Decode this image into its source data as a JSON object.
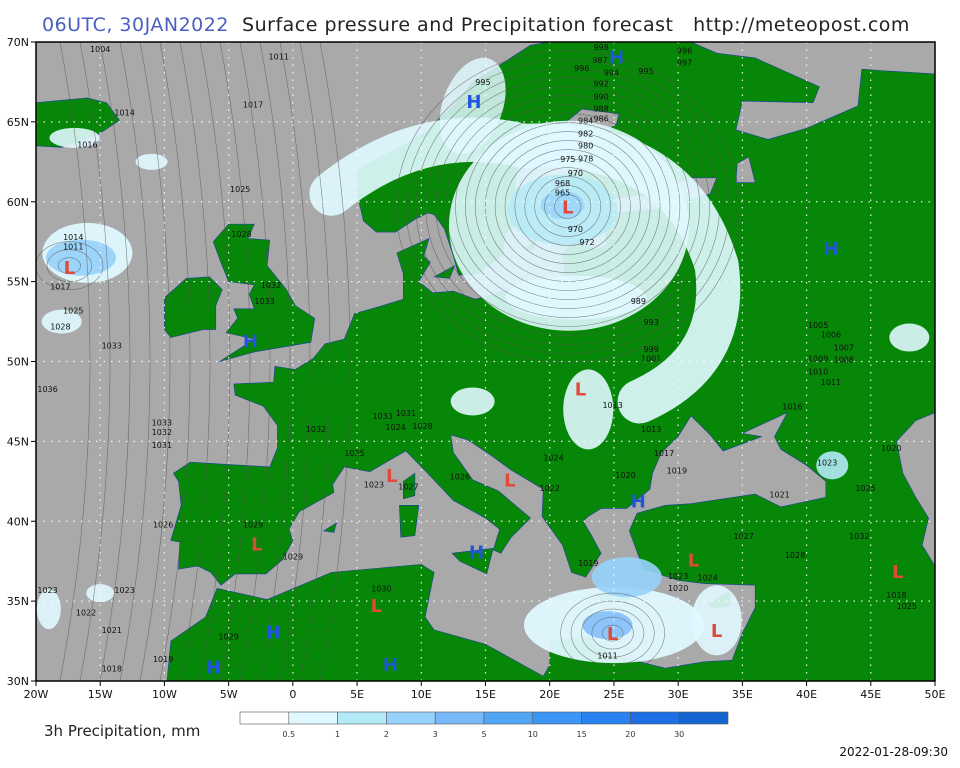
{
  "header": {
    "time": "06UTC, 30JAN2022",
    "title": "Surface pressure and Precipitation forecast",
    "url": "http://meteopost.com"
  },
  "map": {
    "lon_range": [
      -20,
      50
    ],
    "lat_range": [
      30,
      70
    ],
    "grid_step_deg": 5,
    "grid": "dotted",
    "colors": {
      "land": "#078707",
      "sea": "#a9a9a9",
      "high": "#2255dd",
      "low": "#e04a3a"
    },
    "lon_labels": [
      "20W",
      "15W",
      "10W",
      "5W",
      "0",
      "5E",
      "10E",
      "15E",
      "20E",
      "25E",
      "30E",
      "35E",
      "40E",
      "45E",
      "50E"
    ],
    "lat_labels": [
      "70N",
      "65N",
      "60N",
      "55N",
      "50N",
      "45N",
      "40N",
      "35N",
      "30N"
    ],
    "pressure_centers": [
      {
        "type": "H",
        "lon": 14.1,
        "lat": 66.3
      },
      {
        "type": "H",
        "lon": 25.2,
        "lat": 69.1
      },
      {
        "type": "L",
        "lon": -17.4,
        "lat": 55.9
      },
      {
        "type": "L",
        "lon": 21.4,
        "lat": 59.7
      },
      {
        "type": "H",
        "lon": 41.9,
        "lat": 57.1
      },
      {
        "type": "H",
        "lon": -3.3,
        "lat": 51.3
      },
      {
        "type": "L",
        "lon": 22.4,
        "lat": 48.3
      },
      {
        "type": "L",
        "lon": 7.7,
        "lat": 42.9
      },
      {
        "type": "L",
        "lon": 16.9,
        "lat": 42.6
      },
      {
        "type": "H",
        "lon": 26.9,
        "lat": 41.3
      },
      {
        "type": "L",
        "lon": -2.8,
        "lat": 38.6
      },
      {
        "type": "H",
        "lon": 14.3,
        "lat": 38.1
      },
      {
        "type": "L",
        "lon": 31.2,
        "lat": 37.6
      },
      {
        "type": "L",
        "lon": 47.1,
        "lat": 36.9
      },
      {
        "type": "L",
        "lon": 6.5,
        "lat": 34.75
      },
      {
        "type": "L",
        "lon": 24.9,
        "lat": 33.0
      },
      {
        "type": "L",
        "lon": 33.0,
        "lat": 33.2
      },
      {
        "type": "H",
        "lon": -1.5,
        "lat": 33.1
      },
      {
        "type": "H",
        "lon": -6.2,
        "lat": 30.9
      },
      {
        "type": "H",
        "lon": 7.6,
        "lat": 30.75
      }
    ],
    "isobar_labels": [
      {
        "v": "1004",
        "lon": -15,
        "lat": 69.7
      },
      {
        "v": "1011",
        "lon": -1.1,
        "lat": 68.9
      },
      {
        "v": "1017",
        "lon": -3.1,
        "lat": 65.9
      },
      {
        "v": "1014",
        "lon": -13.1,
        "lat": 65.4
      },
      {
        "v": "1016",
        "lon": -16,
        "lat": 63.4
      },
      {
        "v": "1025",
        "lon": -4.1,
        "lat": 60.6
      },
      {
        "v": "1014",
        "lon": -17.1,
        "lat": 57.6
      },
      {
        "v": "1011",
        "lon": -17.1,
        "lat": 57.0
      },
      {
        "v": "1017",
        "lon": -18.1,
        "lat": 54.5
      },
      {
        "v": "1025",
        "lon": -17.1,
        "lat": 53.0
      },
      {
        "v": "1028",
        "lon": -18.1,
        "lat": 52.0
      },
      {
        "v": "1033",
        "lon": -14.1,
        "lat": 50.8
      },
      {
        "v": "1036",
        "lon": -19.1,
        "lat": 48.1
      },
      {
        "v": "1033",
        "lon": -10.2,
        "lat": 46.0
      },
      {
        "v": "1032",
        "lon": -10.2,
        "lat": 45.4
      },
      {
        "v": "1031",
        "lon": -10.2,
        "lat": 44.9
      },
      {
        "v": "1026",
        "lon": -10.1,
        "lat": 39.6
      },
      {
        "v": "1029",
        "lon": -3.1,
        "lat": 39.6
      },
      {
        "v": "1029",
        "lon": 0,
        "lat": 37.6
      },
      {
        "v": "1023",
        "lon": -19.1,
        "lat": 35.5
      },
      {
        "v": "1023",
        "lon": -13.1,
        "lat": 35.5
      },
      {
        "v": "1022",
        "lon": -16.1,
        "lat": 34.1
      },
      {
        "v": "1021",
        "lon": -14.1,
        "lat": 33.0
      },
      {
        "v": "1018",
        "lon": -14.1,
        "lat": 30.6
      },
      {
        "v": "1019",
        "lon": -10.1,
        "lat": 31.2
      },
      {
        "v": "1029",
        "lon": -5,
        "lat": 32.6
      },
      {
        "v": "1030",
        "lon": 6.9,
        "lat": 35.6
      },
      {
        "v": "1032",
        "lon": 1.8,
        "lat": 45.6
      },
      {
        "v": "1025",
        "lon": 4.8,
        "lat": 44.1
      },
      {
        "v": "1023",
        "lon": 6.9,
        "lat": 42.1
      },
      {
        "v": "1026",
        "lon": 13,
        "lat": 42.6
      },
      {
        "v": "1033",
        "lon": -2.2,
        "lat": 53.6
      },
      {
        "v": "1032",
        "lon": -1.7,
        "lat": 54.6
      },
      {
        "v": "1028",
        "lon": -4,
        "lat": 57.8
      },
      {
        "v": "995",
        "lon": 14.8,
        "lat": 67.3
      },
      {
        "v": "998",
        "lon": 24,
        "lat": 69.5
      },
      {
        "v": "996",
        "lon": 22.5,
        "lat": 68.2
      },
      {
        "v": "987",
        "lon": 24.5,
        "lat": 68.7
      },
      {
        "v": "994",
        "lon": 24.8,
        "lat": 67.9
      },
      {
        "v": "995",
        "lon": 27.5,
        "lat": 68.0
      },
      {
        "v": "992",
        "lon": 24.0,
        "lat": 67.2
      },
      {
        "v": "990",
        "lon": 24.0,
        "lat": 66.7
      },
      {
        "v": "988",
        "lon": 24.0,
        "lat": 66.2
      },
      {
        "v": "986",
        "lon": 24.0,
        "lat": 65.6
      },
      {
        "v": "984",
        "lon": 22.8,
        "lat": 64.9
      },
      {
        "v": "982",
        "lon": 22.8,
        "lat": 64.4
      },
      {
        "v": "980",
        "lon": 22.8,
        "lat": 63.9
      },
      {
        "v": "978",
        "lon": 22.8,
        "lat": 63.4
      },
      {
        "v": "975",
        "lon": 22.0,
        "lat": 62.5
      },
      {
        "v": "970",
        "lon": 22.0,
        "lat": 61.6
      },
      {
        "v": "968",
        "lon": 21.0,
        "lat": 61.0
      },
      {
        "v": "965",
        "lon": 21.0,
        "lat": 60.4
      },
      {
        "v": "970",
        "lon": 22.0,
        "lat": 58.1
      },
      {
        "v": "972",
        "lon": 22.9,
        "lat": 57.6
      },
      {
        "v": "989",
        "lon": 26.9,
        "lat": 53.6
      },
      {
        "v": "993",
        "lon": 27.9,
        "lat": 52.3
      },
      {
        "v": "999",
        "lon": 27.9,
        "lat": 50.6
      },
      {
        "v": "1001",
        "lon": 27.9,
        "lat": 50.0
      },
      {
        "v": "996",
        "lon": 30.5,
        "lat": 69.6
      },
      {
        "v": "997",
        "lon": 30.5,
        "lat": 69.1
      },
      {
        "v": "1013",
        "lon": 24.9,
        "lat": 47.1
      },
      {
        "v": "1016",
        "lon": 38.9,
        "lat": 47.0
      },
      {
        "v": "1013",
        "lon": 27.9,
        "lat": 45.6
      },
      {
        "v": "1017",
        "lon": 28.9,
        "lat": 44.1
      },
      {
        "v": "1019",
        "lon": 29.9,
        "lat": 43.0
      },
      {
        "v": "1020",
        "lon": 25.9,
        "lat": 42.7
      },
      {
        "v": "1021",
        "lon": 37.9,
        "lat": 41.5
      },
      {
        "v": "1023",
        "lon": 41.6,
        "lat": 43.5
      },
      {
        "v": "1025",
        "lon": 44.6,
        "lat": 41.9
      },
      {
        "v": "1027",
        "lon": 35.1,
        "lat": 38.9
      },
      {
        "v": "1028",
        "lon": 39.1,
        "lat": 37.7
      },
      {
        "v": "1032",
        "lon": 44.1,
        "lat": 38.9
      },
      {
        "v": "1020",
        "lon": 46.6,
        "lat": 44.4
      },
      {
        "v": "1005",
        "lon": 40.9,
        "lat": 52.1
      },
      {
        "v": "1006",
        "lon": 41.9,
        "lat": 51.5
      },
      {
        "v": "1007",
        "lon": 42.9,
        "lat": 51.0
      },
      {
        "v": "1008",
        "lon": 42.9,
        "lat": 50.5
      },
      {
        "v": "1009",
        "lon": 40.9,
        "lat": 50.0
      },
      {
        "v": "1010",
        "lon": 40.9,
        "lat": 49.5
      },
      {
        "v": "1011",
        "lon": 41.9,
        "lat": 49.1
      },
      {
        "v": "1031",
        "lon": 8.8,
        "lat": 46.6
      },
      {
        "v": "1024",
        "lon": 8.0,
        "lat": 45.7
      },
      {
        "v": "1028",
        "lon": 10.1,
        "lat": 46.1
      },
      {
        "v": "1033",
        "lon": 7.0,
        "lat": 46.1
      },
      {
        "v": "1027",
        "lon": 9.0,
        "lat": 42.0
      },
      {
        "v": "1024",
        "lon": 20.3,
        "lat": 43.8
      },
      {
        "v": "1022",
        "lon": 20.0,
        "lat": 41.9
      },
      {
        "v": "1019",
        "lon": 23.0,
        "lat": 37.2
      },
      {
        "v": "1023",
        "lon": 30.0,
        "lat": 36.7
      },
      {
        "v": "1020",
        "lon": 30.0,
        "lat": 36.2
      },
      {
        "v": "1024",
        "lon": 32.3,
        "lat": 36.6
      },
      {
        "v": "1011",
        "lon": 24.5,
        "lat": 31.4
      },
      {
        "v": "1018",
        "lon": 47,
        "lat": 35.2
      },
      {
        "v": "1025",
        "lon": 47.8,
        "lat": 34.5
      }
    ]
  },
  "legend": {
    "label": "3h Precipitation, mm",
    "thresholds": [
      "0.5",
      "1",
      "2",
      "3",
      "5",
      "10",
      "15",
      "20",
      "30"
    ],
    "colors": [
      "#ffffff",
      "#e0f8ff",
      "#b4eaf8",
      "#96d2fa",
      "#78b9fa",
      "#50a5f5",
      "#3c96f5",
      "#2882f0",
      "#1e6ee6",
      "#1464d2"
    ]
  },
  "footer": {
    "timestamp": "2022-01-28-09:30"
  }
}
